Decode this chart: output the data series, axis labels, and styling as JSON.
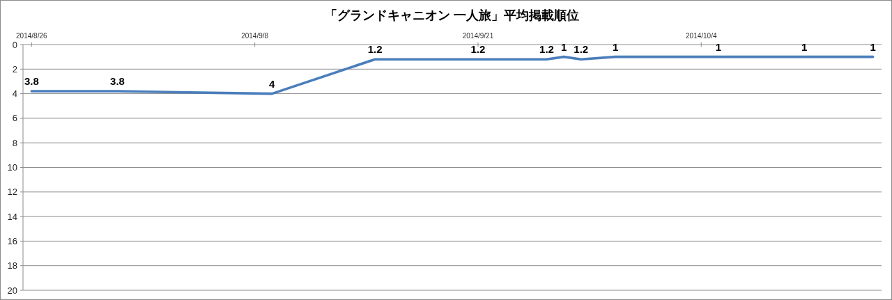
{
  "chart_data": {
    "type": "line",
    "title": "「グランドキャニオン 一人旅」平均掲載順位",
    "x": [
      "2014-08-26",
      "2014-08-31",
      "2014-09-09",
      "2014-09-15",
      "2014-09-21",
      "2014-09-25",
      "2014-09-26",
      "2014-09-27",
      "2014-09-29",
      "2014-10-05",
      "2014-10-10",
      "2014-10-14"
    ],
    "series": [
      {
        "color": "#4a7ebb",
        "values": [
          3.8,
          3.8,
          4,
          1.2,
          1.2,
          1.2,
          1,
          1.2,
          1,
          1,
          1,
          1
        ]
      }
    ],
    "xlim": [
      "2014-08-25T12:00",
      "2014-10-14T12:00"
    ],
    "xticks": [
      {
        "value": "2014-08-26",
        "label": "2014/8/26"
      },
      {
        "value": "2014-09-08",
        "label": "2014/9/8"
      },
      {
        "value": "2014-09-21",
        "label": "2014/9/21"
      },
      {
        "value": "2014-10-04",
        "label": "2014/10/4"
      }
    ],
    "ylim": [
      20,
      0
    ],
    "yticks": [
      0,
      2,
      4,
      6,
      8,
      10,
      12,
      14,
      16,
      18,
      20
    ],
    "grid": "y",
    "data_labels": true
  }
}
